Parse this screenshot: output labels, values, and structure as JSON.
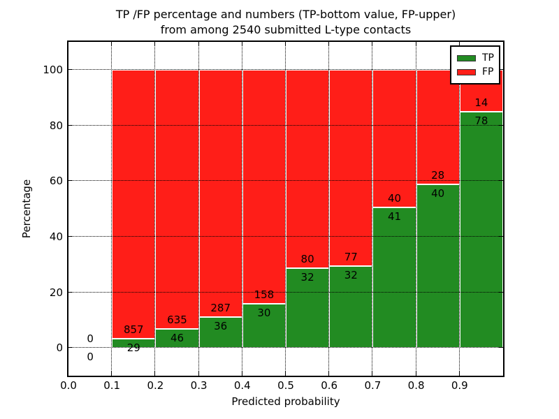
{
  "figure": {
    "title_line1": "TP /FP percentage and numbers (TP-bottom value, FP-upper)",
    "title_line2": "from among 2540 submitted L-type contacts"
  },
  "axes": {
    "xlabel": "Predicted probability",
    "ylabel": "Percentage",
    "x_tick_labels": [
      "0.0",
      "0.1",
      "0.2",
      "0.3",
      "0.4",
      "0.5",
      "0.6",
      "0.7",
      "0.8",
      "0.9"
    ],
    "x_tick_values": [
      0.0,
      0.1,
      0.2,
      0.3,
      0.4,
      0.5,
      0.6,
      0.7,
      0.8,
      0.9
    ],
    "y_tick_labels": [
      "0",
      "20",
      "40",
      "60",
      "80",
      "100"
    ],
    "y_tick_values": [
      0,
      20,
      40,
      60,
      80,
      100
    ]
  },
  "legend": {
    "items": [
      {
        "label": "TP",
        "color": "#228b22"
      },
      {
        "label": "FP",
        "color": "#ff1e18"
      }
    ]
  },
  "colors": {
    "tp": "#228b22",
    "fp": "#ff1e18",
    "grid": "#000000",
    "bar_edge": "#ffffff"
  },
  "chart_data": {
    "type": "bar",
    "stacked": true,
    "normalized_to_percent": true,
    "title": "TP /FP percentage and numbers (TP-bottom value, FP-upper) from among 2540 submitted L-type contacts",
    "xlabel": "Predicted probability",
    "ylabel": "Percentage",
    "xlim": [
      0.0,
      1.0
    ],
    "ylim": [
      -10,
      110
    ],
    "grid": true,
    "legend_position": "upper right",
    "total_submitted": 2540,
    "bin_width": 0.1,
    "bin_starts": [
      0.0,
      0.1,
      0.2,
      0.3,
      0.4,
      0.5,
      0.6,
      0.7,
      0.8,
      0.9
    ],
    "series": [
      {
        "name": "TP",
        "color": "#228b22",
        "counts": [
          0,
          29,
          46,
          36,
          30,
          32,
          32,
          41,
          40,
          78
        ]
      },
      {
        "name": "FP",
        "color": "#ff1e18",
        "counts": [
          0,
          857,
          635,
          287,
          158,
          80,
          77,
          40,
          28,
          14
        ]
      }
    ]
  }
}
